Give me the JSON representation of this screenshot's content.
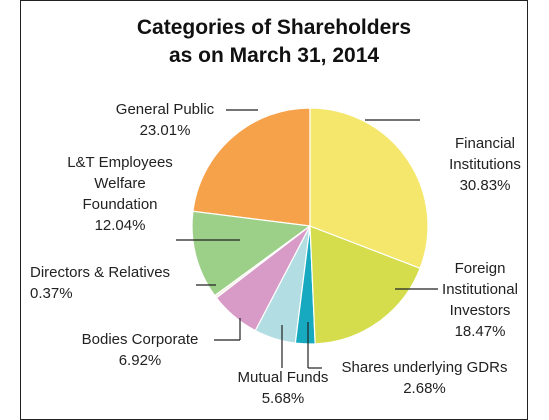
{
  "chart_data": {
    "type": "pie",
    "title": "Categories of Shareholders",
    "subtitle": "as on March 31, 2014",
    "categories": [
      "Financial Institutions",
      "Foreign Institutional Investors",
      "Shares underlying GDRs",
      "Mutual Funds",
      "Bodies Corporate",
      "Directors & Relatives",
      "L&T Employees Welfare Foundation",
      "General Public"
    ],
    "values": [
      30.83,
      18.47,
      2.68,
      5.68,
      6.92,
      0.37,
      12.04,
      23.01
    ],
    "value_labels": [
      "30.83%",
      "18.47%",
      "2.68%",
      "5.68%",
      "6.92%",
      "0.37%",
      "12.04%",
      "23.01%"
    ],
    "colors": [
      "#f4e76c",
      "#d5dd4c",
      "#16a9bf",
      "#b2dde2",
      "#d89bc7",
      "#f3ede0",
      "#9ccf87",
      "#f6a24b"
    ]
  }
}
